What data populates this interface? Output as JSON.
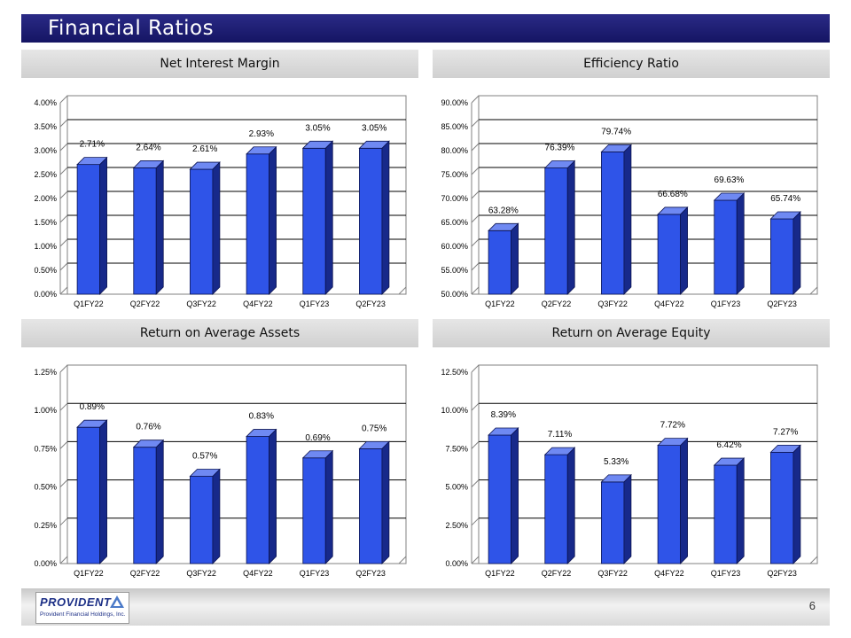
{
  "title": "Financial Ratios",
  "page_number": "6",
  "logo": {
    "name": "PROVIDENT",
    "subtitle": "Provident Financial Holdings, Inc."
  },
  "colors": {
    "bar_front": "#2f54e8",
    "bar_side": "#17298a",
    "bar_top": "#6f89f2",
    "title_bar": "#1c1c74"
  },
  "chart_data": [
    {
      "type": "bar",
      "title": "Net Interest Margin",
      "categories": [
        "Q1FY22",
        "Q2FY22",
        "Q3FY22",
        "Q4FY22",
        "Q1FY23",
        "Q2FY23"
      ],
      "values": [
        2.71,
        2.64,
        2.61,
        2.93,
        3.05,
        3.05
      ],
      "data_labels": [
        "2.71%",
        "2.64%",
        "2.61%",
        "2.93%",
        "3.05%",
        "3.05%"
      ],
      "ylim": [
        0,
        4
      ],
      "y_ticks": [
        0,
        0.5,
        1,
        1.5,
        2,
        2.5,
        3,
        3.5,
        4
      ],
      "y_tick_labels": [
        "0.00%",
        "0.50%",
        "1.00%",
        "1.50%",
        "2.00%",
        "2.50%",
        "3.00%",
        "3.50%",
        "4.00%"
      ],
      "grid": true
    },
    {
      "type": "bar",
      "title": "Efficiency Ratio",
      "categories": [
        "Q1FY22",
        "Q2FY22",
        "Q3FY22",
        "Q4FY22",
        "Q1FY23",
        "Q2FY23"
      ],
      "values": [
        63.28,
        76.39,
        79.74,
        66.68,
        69.63,
        65.74
      ],
      "data_labels": [
        "63.28%",
        "76.39%",
        "79.74%",
        "66.68%",
        "69.63%",
        "65.74%"
      ],
      "ylim": [
        50,
        90
      ],
      "y_ticks": [
        50,
        55,
        60,
        65,
        70,
        75,
        80,
        85,
        90
      ],
      "y_tick_labels": [
        "50.00%",
        "55.00%",
        "60.00%",
        "65.00%",
        "70.00%",
        "75.00%",
        "80.00%",
        "85.00%",
        "90.00%"
      ],
      "grid": true
    },
    {
      "type": "bar",
      "title": "Return on Average Assets",
      "categories": [
        "Q1FY22",
        "Q2FY22",
        "Q3FY22",
        "Q4FY22",
        "Q1FY23",
        "Q2FY23"
      ],
      "values": [
        0.89,
        0.76,
        0.57,
        0.83,
        0.69,
        0.75
      ],
      "data_labels": [
        "0.89%",
        "0.76%",
        "0.57%",
        "0.83%",
        "0.69%",
        "0.75%"
      ],
      "ylim": [
        0,
        1.25
      ],
      "y_ticks": [
        0,
        0.25,
        0.5,
        0.75,
        1,
        1.25
      ],
      "y_tick_labels": [
        "0.00%",
        "0.25%",
        "0.50%",
        "0.75%",
        "1.00%",
        "1.25%"
      ],
      "grid": true
    },
    {
      "type": "bar",
      "title": "Return on Average Equity",
      "categories": [
        "Q1FY22",
        "Q2FY22",
        "Q3FY22",
        "Q4FY22",
        "Q1FY23",
        "Q2FY23"
      ],
      "values": [
        8.39,
        7.11,
        5.33,
        7.72,
        6.42,
        7.27
      ],
      "data_labels": [
        "8.39%",
        "7.11%",
        "5.33%",
        "7.72%",
        "6.42%",
        "7.27%"
      ],
      "ylim": [
        0,
        12.5
      ],
      "y_ticks": [
        0,
        2.5,
        5,
        7.5,
        10,
        12.5
      ],
      "y_tick_labels": [
        "0.00%",
        "2.50%",
        "5.00%",
        "7.50%",
        "10.00%",
        "12.50%"
      ],
      "grid": true
    }
  ]
}
